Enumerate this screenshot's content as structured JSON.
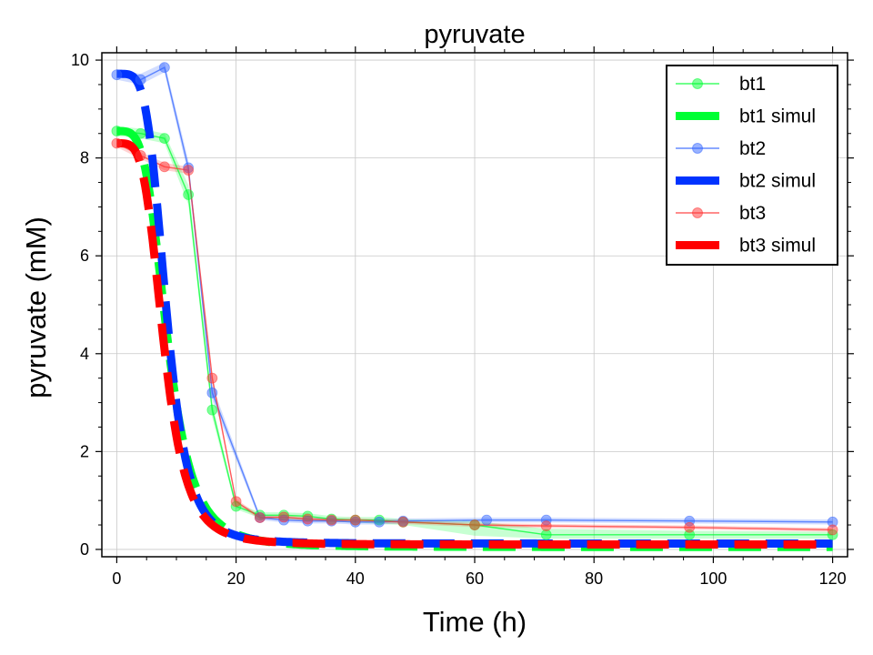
{
  "chart_data": {
    "type": "line",
    "title": "pyruvate",
    "xlabel": "Time (h)",
    "ylabel": "pyruvate (mM)",
    "xlim": [
      -2.5,
      122.5
    ],
    "ylim": [
      -0.15,
      10.15
    ],
    "xticks": [
      0,
      20,
      40,
      60,
      80,
      100,
      120
    ],
    "yticks": [
      0,
      2,
      4,
      6,
      8,
      10
    ],
    "grid": true,
    "legend": "top-right",
    "series": [
      {
        "name": "bt1",
        "kind": "measured",
        "color": "#00ff33",
        "x": [
          0,
          4,
          8,
          12,
          16,
          20,
          24,
          28,
          32,
          36,
          40,
          44,
          48,
          60,
          72,
          96,
          120
        ],
        "y": [
          8.55,
          8.5,
          8.4,
          7.25,
          2.85,
          0.88,
          0.7,
          0.7,
          0.68,
          0.62,
          0.6,
          0.6,
          0.56,
          0.5,
          0.3,
          0.3,
          0.3
        ],
        "band_low": [
          8.45,
          8.4,
          8.3,
          7.05,
          2.7,
          0.82,
          0.64,
          0.62,
          0.6,
          0.56,
          0.55,
          0.52,
          0.5,
          0.28,
          0.22,
          0.22,
          0.22
        ],
        "band_high": [
          8.65,
          8.6,
          8.5,
          7.45,
          3.0,
          0.94,
          0.76,
          0.76,
          0.74,
          0.68,
          0.66,
          0.66,
          0.62,
          0.58,
          0.42,
          0.38,
          0.36
        ]
      },
      {
        "name": "bt1 simul",
        "kind": "simulated",
        "color": "#00ff33",
        "y0": 8.55,
        "yinf": 0.05,
        "t50": 8.5,
        "hill": 4.0
      },
      {
        "name": "bt2",
        "kind": "measured",
        "color": "#3366ff",
        "x": [
          0,
          4,
          8,
          12,
          16,
          24,
          28,
          32,
          36,
          40,
          44,
          48,
          62,
          72,
          96,
          120
        ],
        "y": [
          9.7,
          9.6,
          9.85,
          7.8,
          3.2,
          0.65,
          0.6,
          0.58,
          0.58,
          0.56,
          0.56,
          0.58,
          0.6,
          0.6,
          0.58,
          0.56
        ],
        "band_low": [
          9.6,
          9.5,
          9.75,
          7.65,
          3.05,
          0.6,
          0.55,
          0.53,
          0.53,
          0.51,
          0.51,
          0.53,
          0.55,
          0.55,
          0.53,
          0.51
        ],
        "band_high": [
          9.8,
          9.72,
          9.95,
          7.95,
          3.35,
          0.7,
          0.66,
          0.64,
          0.64,
          0.61,
          0.61,
          0.63,
          0.65,
          0.65,
          0.63,
          0.61
        ]
      },
      {
        "name": "bt2 simul",
        "kind": "simulated",
        "color": "#0033ff",
        "y0": 9.72,
        "yinf": 0.12,
        "t50": 8.3,
        "hill": 4.6
      },
      {
        "name": "bt3",
        "kind": "measured",
        "color": "#ff3333",
        "x": [
          0,
          4,
          8,
          12,
          16,
          20,
          24,
          28,
          32,
          36,
          40,
          48,
          60,
          72,
          96,
          120
        ],
        "y": [
          8.3,
          8.05,
          7.82,
          7.75,
          3.5,
          0.98,
          0.65,
          0.66,
          0.62,
          0.6,
          0.6,
          0.56,
          0.5,
          0.48,
          0.45,
          0.4
        ],
        "band_low": [
          8.22,
          7.98,
          7.75,
          7.68,
          3.4,
          0.93,
          0.61,
          0.62,
          0.58,
          0.56,
          0.56,
          0.52,
          0.46,
          0.44,
          0.41,
          0.36
        ],
        "band_high": [
          8.38,
          8.12,
          7.9,
          7.82,
          3.6,
          1.03,
          0.69,
          0.7,
          0.66,
          0.64,
          0.64,
          0.6,
          0.54,
          0.52,
          0.49,
          0.44
        ]
      },
      {
        "name": "bt3 simul",
        "kind": "simulated",
        "color": "#ff0000",
        "y0": 8.3,
        "yinf": 0.1,
        "t50": 7.9,
        "hill": 4.2
      }
    ]
  }
}
